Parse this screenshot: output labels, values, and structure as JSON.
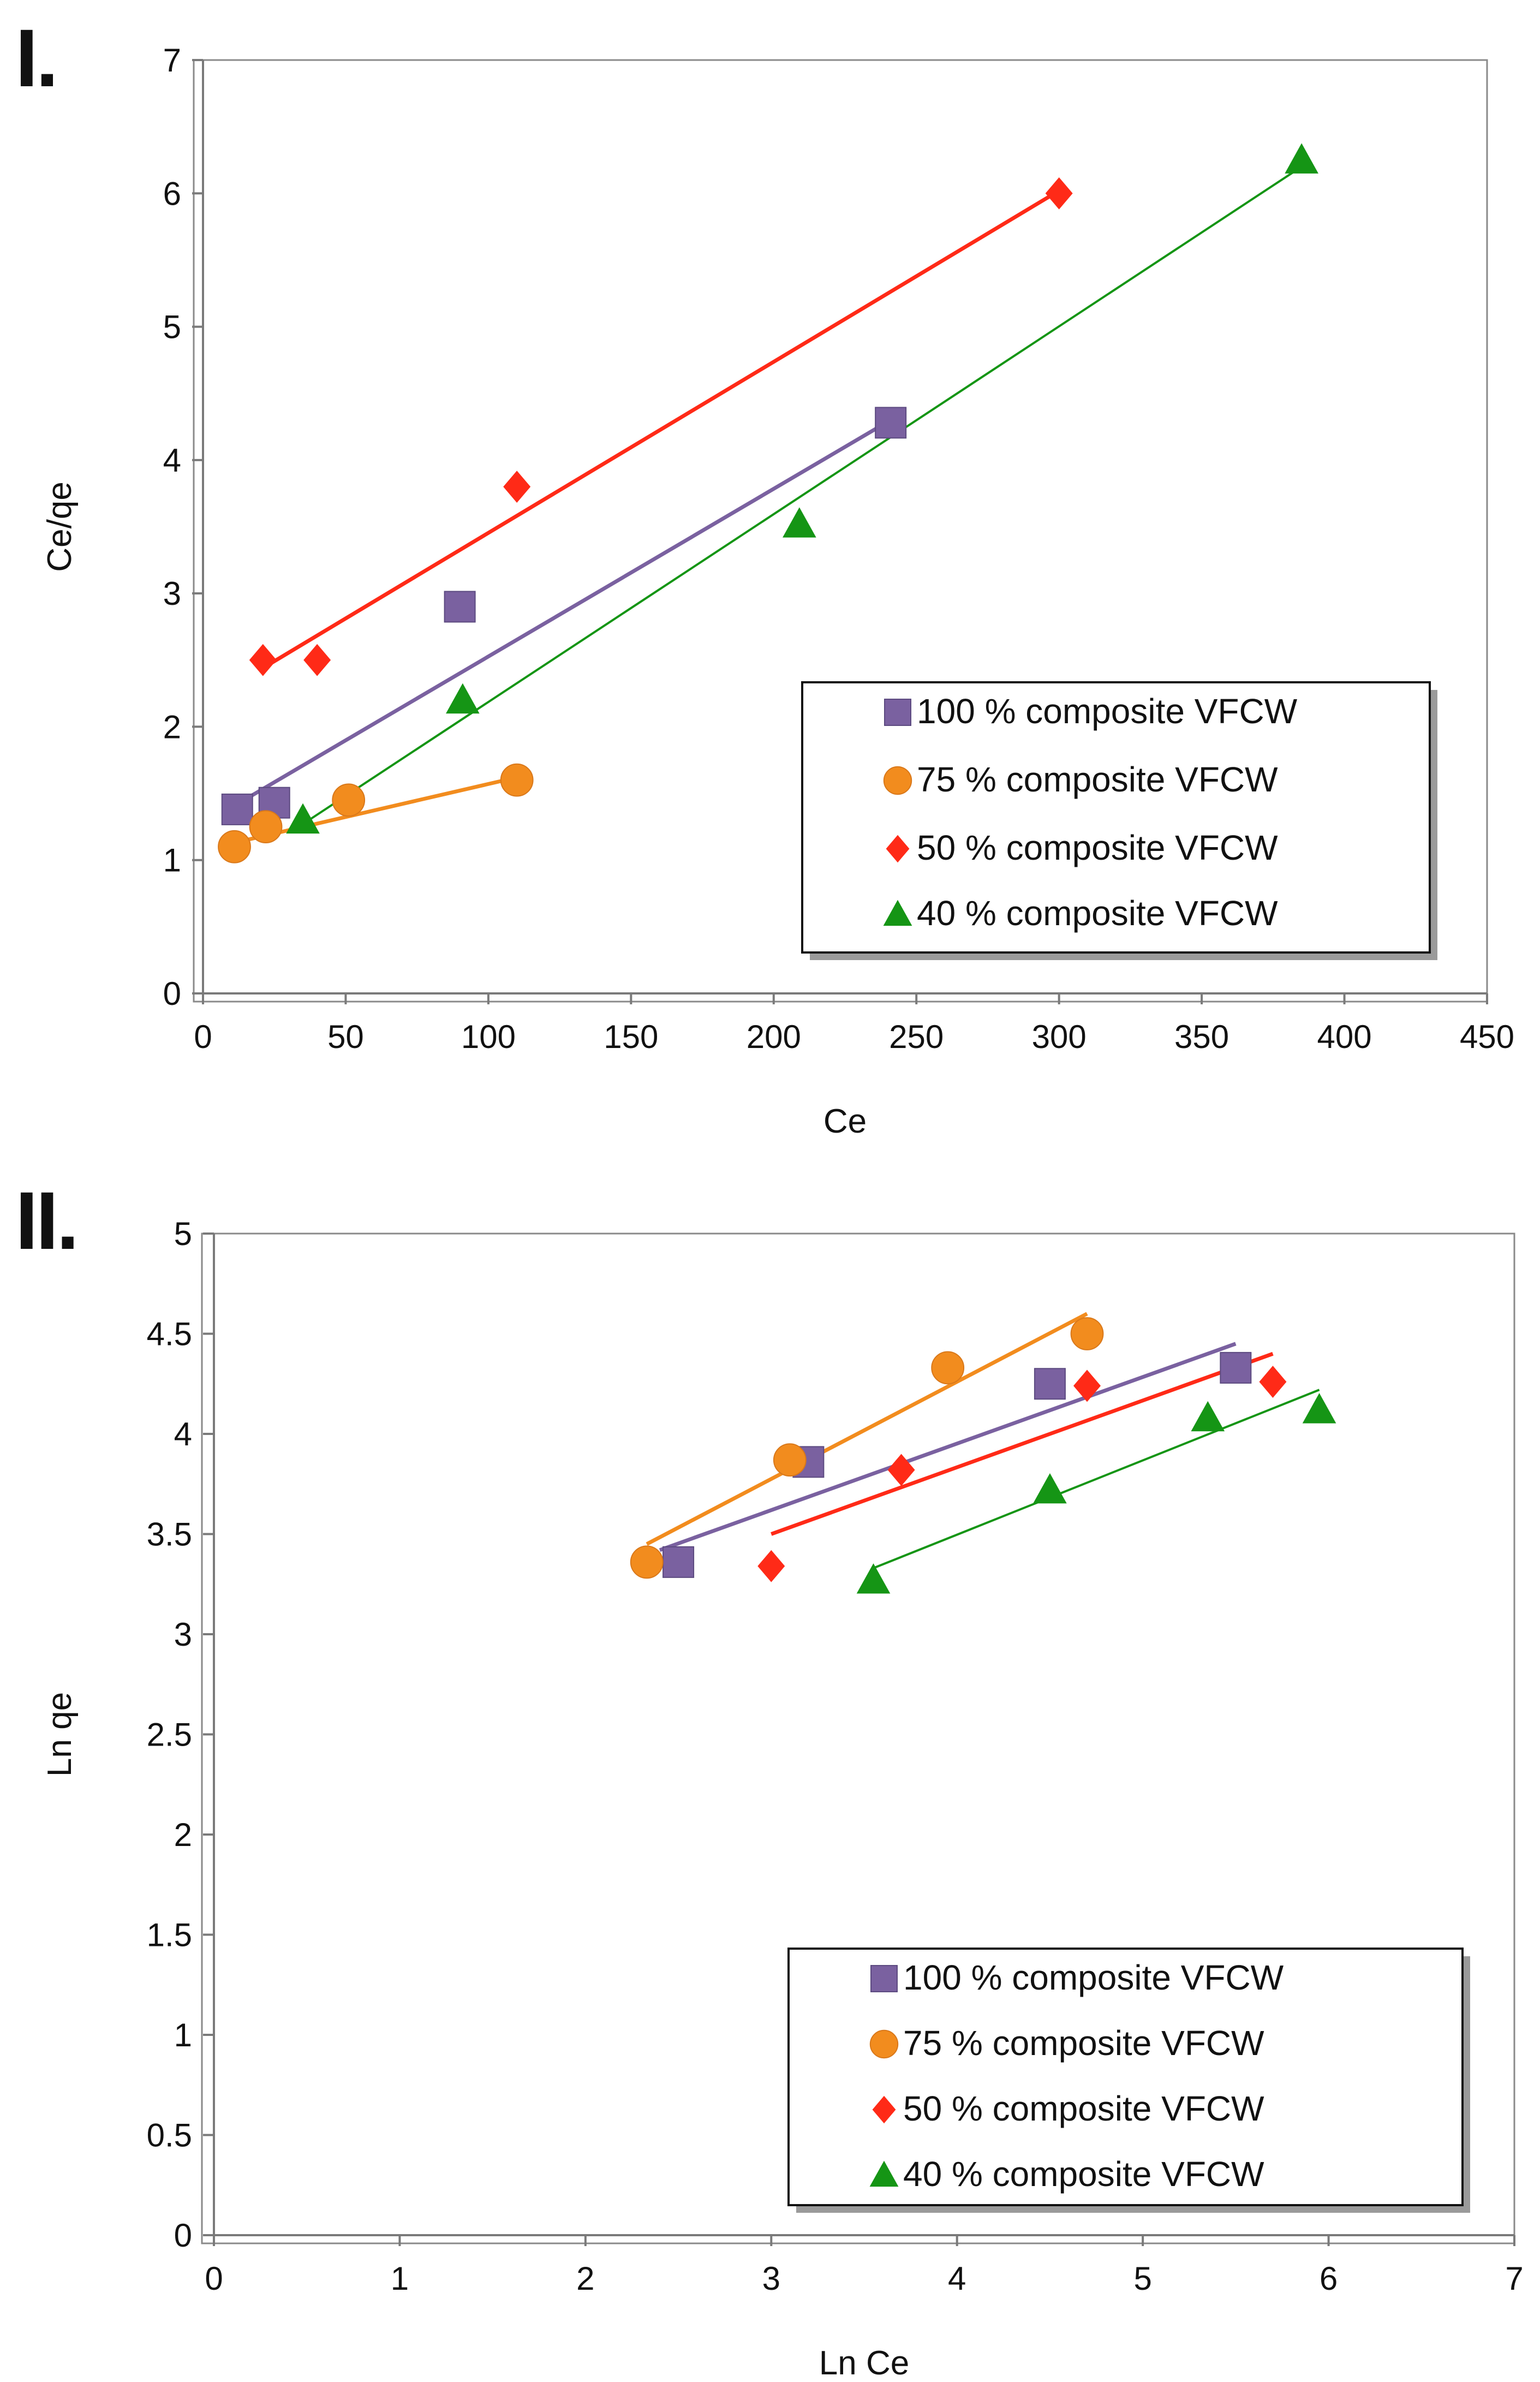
{
  "chart_data": [
    {
      "panel_label": "I.",
      "type": "scatter",
      "title": "",
      "xlabel": "Ce",
      "ylabel": "Ce/qe",
      "xlim": [
        0,
        450
      ],
      "ylim": [
        0,
        7
      ],
      "xticks": [
        0,
        50,
        100,
        150,
        200,
        250,
        300,
        350,
        400,
        450
      ],
      "yticks": [
        0,
        1,
        2,
        3,
        4,
        5,
        6,
        7
      ],
      "grid": false,
      "legend_position": "bottom-right",
      "series": [
        {
          "name": "100 % composite VFCW",
          "marker": "square",
          "color": "#7a61a0",
          "points": [
            [
              12,
              1.38
            ],
            [
              25,
              1.43
            ],
            [
              90,
              2.9
            ],
            [
              241,
              4.28
            ]
          ],
          "trend": [
            [
              12,
              1.42
            ],
            [
              241,
              4.3
            ]
          ]
        },
        {
          "name": "75 % composite VFCW",
          "marker": "circle",
          "color": "#f28c1e",
          "points": [
            [
              11,
              1.1
            ],
            [
              22,
              1.25
            ],
            [
              51,
              1.45
            ],
            [
              110,
              1.6
            ]
          ],
          "trend": [
            [
              11,
              1.13
            ],
            [
              110,
              1.62
            ]
          ]
        },
        {
          "name": "50 % composite VFCW",
          "marker": "diamond",
          "color": "#ff2a17",
          "points": [
            [
              21,
              2.5
            ],
            [
              40,
              2.5
            ],
            [
              110,
              3.8
            ],
            [
              300,
              6.0
            ]
          ],
          "trend": [
            [
              21,
              2.44
            ],
            [
              300,
              6.02
            ]
          ]
        },
        {
          "name": "40 % composite VFCW",
          "marker": "triangle",
          "color": "#159515",
          "points": [
            [
              35,
              1.3
            ],
            [
              91,
              2.2
            ],
            [
              209,
              3.52
            ],
            [
              385,
              6.25
            ]
          ],
          "trend": [
            [
              35,
              1.27
            ],
            [
              385,
              6.2
            ]
          ]
        }
      ]
    },
    {
      "panel_label": "II.",
      "type": "scatter",
      "title": "",
      "xlabel": "Ln Ce",
      "ylabel": "Ln qe",
      "xlim": [
        0,
        7
      ],
      "ylim": [
        0,
        5
      ],
      "xticks": [
        0,
        1,
        2,
        3,
        4,
        5,
        6,
        7
      ],
      "yticks": [
        0,
        0.5,
        1,
        1.5,
        2,
        2.5,
        3,
        3.5,
        4,
        4.5,
        5
      ],
      "grid": false,
      "legend_position": "bottom-right",
      "series": [
        {
          "name": "100 % composite VFCW",
          "marker": "square",
          "color": "#7a61a0",
          "points": [
            [
              2.5,
              3.36
            ],
            [
              3.2,
              3.86
            ],
            [
              4.5,
              4.25
            ],
            [
              5.5,
              4.33
            ]
          ],
          "trend": [
            [
              2.4,
              3.42
            ],
            [
              5.5,
              4.45
            ]
          ]
        },
        {
          "name": "75 % composite VFCW",
          "marker": "circle",
          "color": "#f28c1e",
          "points": [
            [
              2.33,
              3.36
            ],
            [
              3.1,
              3.87
            ],
            [
              3.95,
              4.33
            ],
            [
              4.7,
              4.5
            ]
          ],
          "trend": [
            [
              2.33,
              3.45
            ],
            [
              4.7,
              4.6
            ]
          ]
        },
        {
          "name": "50 % composite VFCW",
          "marker": "diamond",
          "color": "#ff2a17",
          "points": [
            [
              3.0,
              3.34
            ],
            [
              3.7,
              3.82
            ],
            [
              4.7,
              4.24
            ],
            [
              5.7,
              4.26
            ]
          ],
          "trend": [
            [
              3.0,
              3.5
            ],
            [
              5.7,
              4.4
            ]
          ]
        },
        {
          "name": "40 % composite VFCW",
          "marker": "triangle",
          "color": "#159515",
          "points": [
            [
              3.55,
              3.27
            ],
            [
              4.5,
              3.72
            ],
            [
              5.35,
              4.08
            ],
            [
              5.95,
              4.12
            ]
          ],
          "trend": [
            [
              3.55,
              3.33
            ],
            [
              5.95,
              4.22
            ]
          ]
        }
      ]
    }
  ]
}
